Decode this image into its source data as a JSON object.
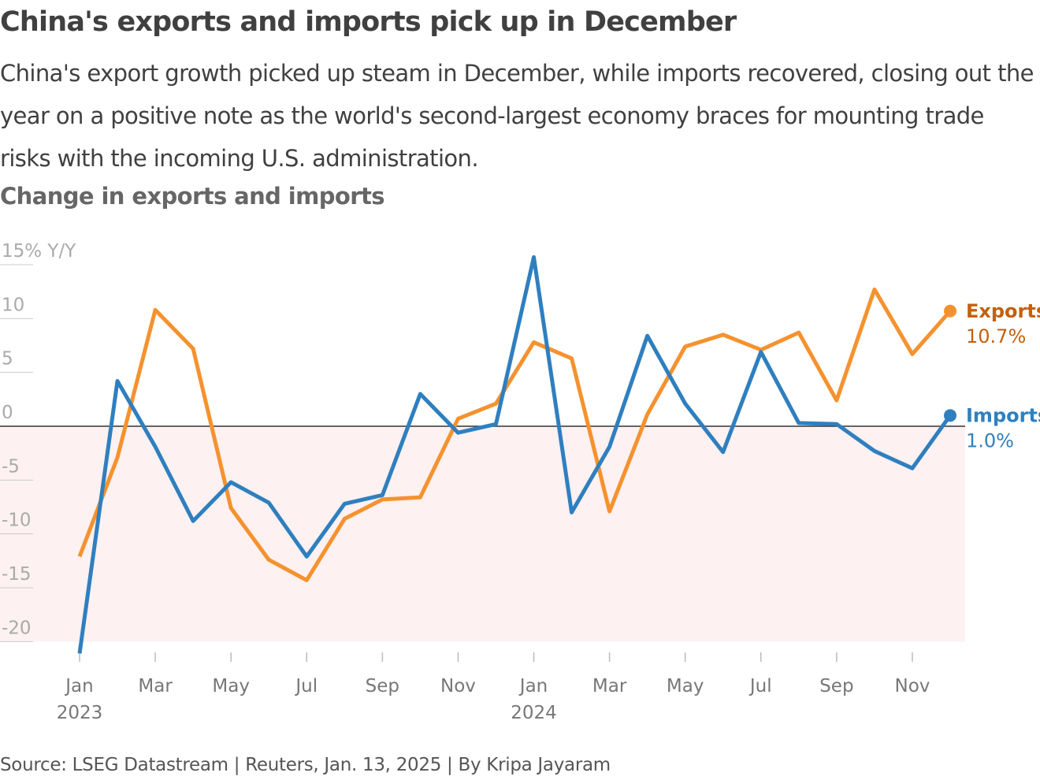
{
  "header": {
    "title": "China's exports and imports pick up in December",
    "subtitle": "China's export growth picked up steam in December, while imports recovered, closing out the year on a positive note as the world's second-largest economy braces for mounting trade risks with the incoming U.S. administration.",
    "chart_title": "Change in exports and imports"
  },
  "footer": {
    "source": "Source: LSEG Datastream | Reuters, Jan. 13, 2025 | By Kripa Jayaram"
  },
  "chart_data": {
    "type": "line",
    "title": "Change in exports and imports",
    "ylabel": "15% Y/Y",
    "ylim": [
      -20,
      15
    ],
    "yticks": [
      15,
      10,
      5,
      0,
      -5,
      -10,
      -15,
      -20
    ],
    "ytick_labels": [
      "15% Y/Y",
      "10",
      "5",
      "0",
      "-5",
      "-10",
      "-15",
      "-20"
    ],
    "x": [
      "Jan 2023",
      "Feb 2023",
      "Mar 2023",
      "Apr 2023",
      "May 2023",
      "Jun 2023",
      "Jul 2023",
      "Aug 2023",
      "Sep 2023",
      "Oct 2023",
      "Nov 2023",
      "Dec 2023",
      "Jan 2024",
      "Feb 2024",
      "Mar 2024",
      "Apr 2024",
      "May 2024",
      "Jun 2024",
      "Jul 2024",
      "Aug 2024",
      "Sep 2024",
      "Oct 2024",
      "Nov 2024",
      "Dec 2024"
    ],
    "xtick_labels": [
      {
        "i": 0,
        "label": "Jan",
        "year": "2023"
      },
      {
        "i": 2,
        "label": "Mar"
      },
      {
        "i": 4,
        "label": "May"
      },
      {
        "i": 6,
        "label": "Jul"
      },
      {
        "i": 8,
        "label": "Sep"
      },
      {
        "i": 10,
        "label": "Nov"
      },
      {
        "i": 12,
        "label": "Jan",
        "year": "2024"
      },
      {
        "i": 14,
        "label": "Mar"
      },
      {
        "i": 16,
        "label": "May"
      },
      {
        "i": 18,
        "label": "Jul"
      },
      {
        "i": 20,
        "label": "Sep"
      },
      {
        "i": 22,
        "label": "Nov"
      }
    ],
    "negative_shading_color": "#fdf1f1",
    "series": [
      {
        "name": "Exports",
        "color": "#f5922f",
        "label_color": "#c4600c",
        "end_label": "10.7%",
        "values": [
          -12.1,
          -2.9,
          10.8,
          7.2,
          -7.6,
          -12.4,
          -14.3,
          -8.6,
          -6.8,
          -6.6,
          0.7,
          2.1,
          7.8,
          6.3,
          -7.9,
          1.1,
          7.4,
          8.5,
          7.1,
          8.7,
          2.4,
          12.7,
          6.7,
          10.7
        ]
      },
      {
        "name": "Imports",
        "color": "#2f7fbf",
        "label_color": "#2f7fbf",
        "end_label": "1.0%",
        "values": [
          -21.1,
          4.2,
          -1.9,
          -8.8,
          -5.2,
          -7.1,
          -12.1,
          -7.2,
          -6.4,
          3.0,
          -0.6,
          0.2,
          15.7,
          -8.0,
          -1.9,
          8.4,
          2.1,
          -2.4,
          6.9,
          0.3,
          0.2,
          -2.3,
          -3.9,
          1.0
        ]
      }
    ]
  }
}
